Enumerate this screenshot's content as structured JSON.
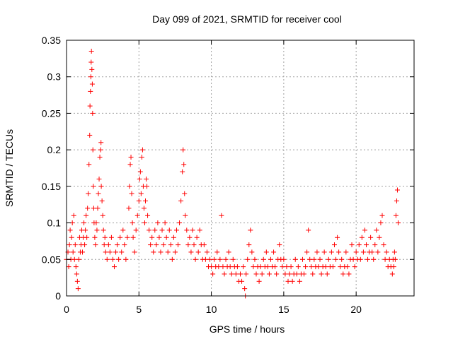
{
  "chart_data": {
    "type": "scatter",
    "title": "Day 099 of 2021, SRMTID for receiver cool",
    "xlabel": "GPS time / hours",
    "ylabel": "SRMTID / TECUs",
    "xlim": [
      0,
      24
    ],
    "ylim": [
      0,
      0.35
    ],
    "xticks": [
      0,
      5,
      10,
      15,
      20
    ],
    "xtick_labels": [
      "0",
      "5",
      "10",
      "15",
      "20"
    ],
    "yticks": [
      0,
      0.05,
      0.1,
      0.15,
      0.2,
      0.25,
      0.3,
      0.35
    ],
    "ytick_labels": [
      "0",
      "0.05",
      "0.1",
      "0.15",
      "0.2",
      "0.25",
      "0.3",
      "0.35"
    ],
    "grid": true,
    "marker": "+",
    "color": "#ff0000",
    "series": [
      {
        "name": "SRMTID",
        "points": [
          [
            0.0,
            0.05
          ],
          [
            0.1,
            0.06
          ],
          [
            0.15,
            0.04
          ],
          [
            0.2,
            0.07
          ],
          [
            0.25,
            0.09
          ],
          [
            0.3,
            0.05
          ],
          [
            0.35,
            0.08
          ],
          [
            0.4,
            0.1
          ],
          [
            0.45,
            0.06
          ],
          [
            0.5,
            0.11
          ],
          [
            0.55,
            0.05
          ],
          [
            0.6,
            0.07
          ],
          [
            0.65,
            0.04
          ],
          [
            0.7,
            0.03
          ],
          [
            0.75,
            0.02
          ],
          [
            0.8,
            0.01
          ],
          [
            0.85,
            0.05
          ],
          [
            0.9,
            0.08
          ],
          [
            0.95,
            0.06
          ],
          [
            1.0,
            0.07
          ],
          [
            1.05,
            0.09
          ],
          [
            1.1,
            0.06
          ],
          [
            1.15,
            0.08
          ],
          [
            1.2,
            0.1
          ],
          [
            1.25,
            0.07
          ],
          [
            1.3,
            0.09
          ],
          [
            1.35,
            0.11
          ],
          [
            1.4,
            0.08
          ],
          [
            1.45,
            0.12
          ],
          [
            1.5,
            0.14
          ],
          [
            1.55,
            0.18
          ],
          [
            1.6,
            0.22
          ],
          [
            1.62,
            0.26
          ],
          [
            1.65,
            0.28
          ],
          [
            1.68,
            0.3
          ],
          [
            1.7,
            0.32
          ],
          [
            1.72,
            0.335
          ],
          [
            1.75,
            0.31
          ],
          [
            1.78,
            0.29
          ],
          [
            1.8,
            0.25
          ],
          [
            1.82,
            0.2
          ],
          [
            1.85,
            0.15
          ],
          [
            1.88,
            0.12
          ],
          [
            1.9,
            0.1
          ],
          [
            1.95,
            0.08
          ],
          [
            2.0,
            0.07
          ],
          [
            2.05,
            0.1
          ],
          [
            2.1,
            0.09
          ],
          [
            2.15,
            0.12
          ],
          [
            2.2,
            0.14
          ],
          [
            2.25,
            0.16
          ],
          [
            2.3,
            0.19
          ],
          [
            2.35,
            0.2
          ],
          [
            2.38,
            0.21
          ],
          [
            2.4,
            0.15
          ],
          [
            2.45,
            0.13
          ],
          [
            2.5,
            0.11
          ],
          [
            2.55,
            0.09
          ],
          [
            2.6,
            0.07
          ],
          [
            2.65,
            0.08
          ],
          [
            2.7,
            0.06
          ],
          [
            2.8,
            0.05
          ],
          [
            2.9,
            0.07
          ],
          [
            3.0,
            0.06
          ],
          [
            3.1,
            0.08
          ],
          [
            3.2,
            0.05
          ],
          [
            3.3,
            0.04
          ],
          [
            3.4,
            0.06
          ],
          [
            3.5,
            0.07
          ],
          [
            3.6,
            0.05
          ],
          [
            3.7,
            0.08
          ],
          [
            3.8,
            0.06
          ],
          [
            3.9,
            0.09
          ],
          [
            4.0,
            0.07
          ],
          [
            4.1,
            0.05
          ],
          [
            4.2,
            0.08
          ],
          [
            4.3,
            0.12
          ],
          [
            4.35,
            0.15
          ],
          [
            4.4,
            0.18
          ],
          [
            4.45,
            0.19
          ],
          [
            4.5,
            0.14
          ],
          [
            4.55,
            0.1
          ],
          [
            4.6,
            0.08
          ],
          [
            4.7,
            0.06
          ],
          [
            4.8,
            0.09
          ],
          [
            4.9,
            0.11
          ],
          [
            5.0,
            0.13
          ],
          [
            5.05,
            0.16
          ],
          [
            5.1,
            0.17
          ],
          [
            5.15,
            0.14
          ],
          [
            5.2,
            0.19
          ],
          [
            5.25,
            0.2
          ],
          [
            5.3,
            0.15
          ],
          [
            5.35,
            0.12
          ],
          [
            5.4,
            0.1
          ],
          [
            5.45,
            0.13
          ],
          [
            5.5,
            0.16
          ],
          [
            5.55,
            0.15
          ],
          [
            5.6,
            0.11
          ],
          [
            5.7,
            0.09
          ],
          [
            5.8,
            0.07
          ],
          [
            5.9,
            0.08
          ],
          [
            6.0,
            0.06
          ],
          [
            6.1,
            0.09
          ],
          [
            6.2,
            0.07
          ],
          [
            6.3,
            0.1
          ],
          [
            6.4,
            0.08
          ],
          [
            6.5,
            0.06
          ],
          [
            6.6,
            0.09
          ],
          [
            6.7,
            0.07
          ],
          [
            6.8,
            0.1
          ],
          [
            6.9,
            0.08
          ],
          [
            7.0,
            0.06
          ],
          [
            7.1,
            0.09
          ],
          [
            7.2,
            0.07
          ],
          [
            7.3,
            0.05
          ],
          [
            7.4,
            0.08
          ],
          [
            7.5,
            0.06
          ],
          [
            7.6,
            0.09
          ],
          [
            7.7,
            0.07
          ],
          [
            7.8,
            0.1
          ],
          [
            7.9,
            0.13
          ],
          [
            8.0,
            0.17
          ],
          [
            8.05,
            0.2
          ],
          [
            8.1,
            0.18
          ],
          [
            8.15,
            0.14
          ],
          [
            8.2,
            0.11
          ],
          [
            8.3,
            0.09
          ],
          [
            8.4,
            0.07
          ],
          [
            8.5,
            0.08
          ],
          [
            8.6,
            0.06
          ],
          [
            8.7,
            0.09
          ],
          [
            8.8,
            0.07
          ],
          [
            8.9,
            0.05
          ],
          [
            9.0,
            0.08
          ],
          [
            9.1,
            0.06
          ],
          [
            9.2,
            0.09
          ],
          [
            9.3,
            0.07
          ],
          [
            9.4,
            0.05
          ],
          [
            9.5,
            0.07
          ],
          [
            9.6,
            0.05
          ],
          [
            9.7,
            0.06
          ],
          [
            9.8,
            0.04
          ],
          [
            9.9,
            0.05
          ],
          [
            10.0,
            0.04
          ],
          [
            10.1,
            0.03
          ],
          [
            10.2,
            0.05
          ],
          [
            10.3,
            0.04
          ],
          [
            10.4,
            0.06
          ],
          [
            10.5,
            0.04
          ],
          [
            10.6,
            0.05
          ],
          [
            10.7,
            0.11
          ],
          [
            10.8,
            0.04
          ],
          [
            10.9,
            0.03
          ],
          [
            11.0,
            0.05
          ],
          [
            11.1,
            0.04
          ],
          [
            11.2,
            0.06
          ],
          [
            11.3,
            0.04
          ],
          [
            11.4,
            0.03
          ],
          [
            11.5,
            0.05
          ],
          [
            11.6,
            0.04
          ],
          [
            11.7,
            0.03
          ],
          [
            11.8,
            0.04
          ],
          [
            11.9,
            0.02
          ],
          [
            12.0,
            0.03
          ],
          [
            12.1,
            0.02
          ],
          [
            12.2,
            0.04
          ],
          [
            12.3,
            0.01
          ],
          [
            12.35,
            0.0
          ],
          [
            12.4,
            0.03
          ],
          [
            12.5,
            0.05
          ],
          [
            12.6,
            0.07
          ],
          [
            12.7,
            0.09
          ],
          [
            12.8,
            0.06
          ],
          [
            12.9,
            0.04
          ],
          [
            13.0,
            0.05
          ],
          [
            13.1,
            0.03
          ],
          [
            13.2,
            0.04
          ],
          [
            13.3,
            0.02
          ],
          [
            13.4,
            0.04
          ],
          [
            13.5,
            0.03
          ],
          [
            13.6,
            0.05
          ],
          [
            13.7,
            0.04
          ],
          [
            13.8,
            0.06
          ],
          [
            13.9,
            0.04
          ],
          [
            14.0,
            0.03
          ],
          [
            14.1,
            0.05
          ],
          [
            14.2,
            0.04
          ],
          [
            14.3,
            0.06
          ],
          [
            14.4,
            0.04
          ],
          [
            14.5,
            0.03
          ],
          [
            14.6,
            0.05
          ],
          [
            14.7,
            0.07
          ],
          [
            14.8,
            0.05
          ],
          [
            14.9,
            0.04
          ],
          [
            15.0,
            0.05
          ],
          [
            15.1,
            0.03
          ],
          [
            15.2,
            0.04
          ],
          [
            15.3,
            0.02
          ],
          [
            15.4,
            0.03
          ],
          [
            15.5,
            0.04
          ],
          [
            15.6,
            0.02
          ],
          [
            15.7,
            0.03
          ],
          [
            15.8,
            0.05
          ],
          [
            15.9,
            0.03
          ],
          [
            16.0,
            0.04
          ],
          [
            16.1,
            0.02
          ],
          [
            16.2,
            0.03
          ],
          [
            16.3,
            0.05
          ],
          [
            16.4,
            0.03
          ],
          [
            16.5,
            0.04
          ],
          [
            16.6,
            0.06
          ],
          [
            16.7,
            0.09
          ],
          [
            16.8,
            0.05
          ],
          [
            16.9,
            0.04
          ],
          [
            17.0,
            0.03
          ],
          [
            17.1,
            0.05
          ],
          [
            17.2,
            0.04
          ],
          [
            17.3,
            0.06
          ],
          [
            17.4,
            0.04
          ],
          [
            17.5,
            0.05
          ],
          [
            17.6,
            0.03
          ],
          [
            17.7,
            0.04
          ],
          [
            17.8,
            0.06
          ],
          [
            17.9,
            0.04
          ],
          [
            18.0,
            0.03
          ],
          [
            18.1,
            0.05
          ],
          [
            18.2,
            0.04
          ],
          [
            18.3,
            0.06
          ],
          [
            18.4,
            0.04
          ],
          [
            18.5,
            0.07
          ],
          [
            18.6,
            0.05
          ],
          [
            18.7,
            0.08
          ],
          [
            18.8,
            0.06
          ],
          [
            18.9,
            0.04
          ],
          [
            19.0,
            0.05
          ],
          [
            19.1,
            0.03
          ],
          [
            19.2,
            0.04
          ],
          [
            19.3,
            0.06
          ],
          [
            19.4,
            0.04
          ],
          [
            19.5,
            0.03
          ],
          [
            19.6,
            0.05
          ],
          [
            19.7,
            0.07
          ],
          [
            19.8,
            0.05
          ],
          [
            19.9,
            0.04
          ],
          [
            20.0,
            0.06
          ],
          [
            20.1,
            0.05
          ],
          [
            20.2,
            0.07
          ],
          [
            20.3,
            0.05
          ],
          [
            20.4,
            0.08
          ],
          [
            20.5,
            0.06
          ],
          [
            20.6,
            0.09
          ],
          [
            20.7,
            0.07
          ],
          [
            20.8,
            0.05
          ],
          [
            20.9,
            0.06
          ],
          [
            21.0,
            0.08
          ],
          [
            21.1,
            0.06
          ],
          [
            21.2,
            0.05
          ],
          [
            21.3,
            0.07
          ],
          [
            21.4,
            0.09
          ],
          [
            21.5,
            0.06
          ],
          [
            21.6,
            0.08
          ],
          [
            21.7,
            0.1
          ],
          [
            21.8,
            0.11
          ],
          [
            21.9,
            0.07
          ],
          [
            22.0,
            0.05
          ],
          [
            22.1,
            0.06
          ],
          [
            22.2,
            0.04
          ],
          [
            22.3,
            0.05
          ],
          [
            22.4,
            0.04
          ],
          [
            22.5,
            0.03
          ],
          [
            22.55,
            0.05
          ],
          [
            22.6,
            0.04
          ],
          [
            22.65,
            0.06
          ],
          [
            22.7,
            0.05
          ],
          [
            22.75,
            0.11
          ],
          [
            22.8,
            0.13
          ],
          [
            22.85,
            0.145
          ],
          [
            22.9,
            0.1
          ]
        ]
      }
    ]
  }
}
